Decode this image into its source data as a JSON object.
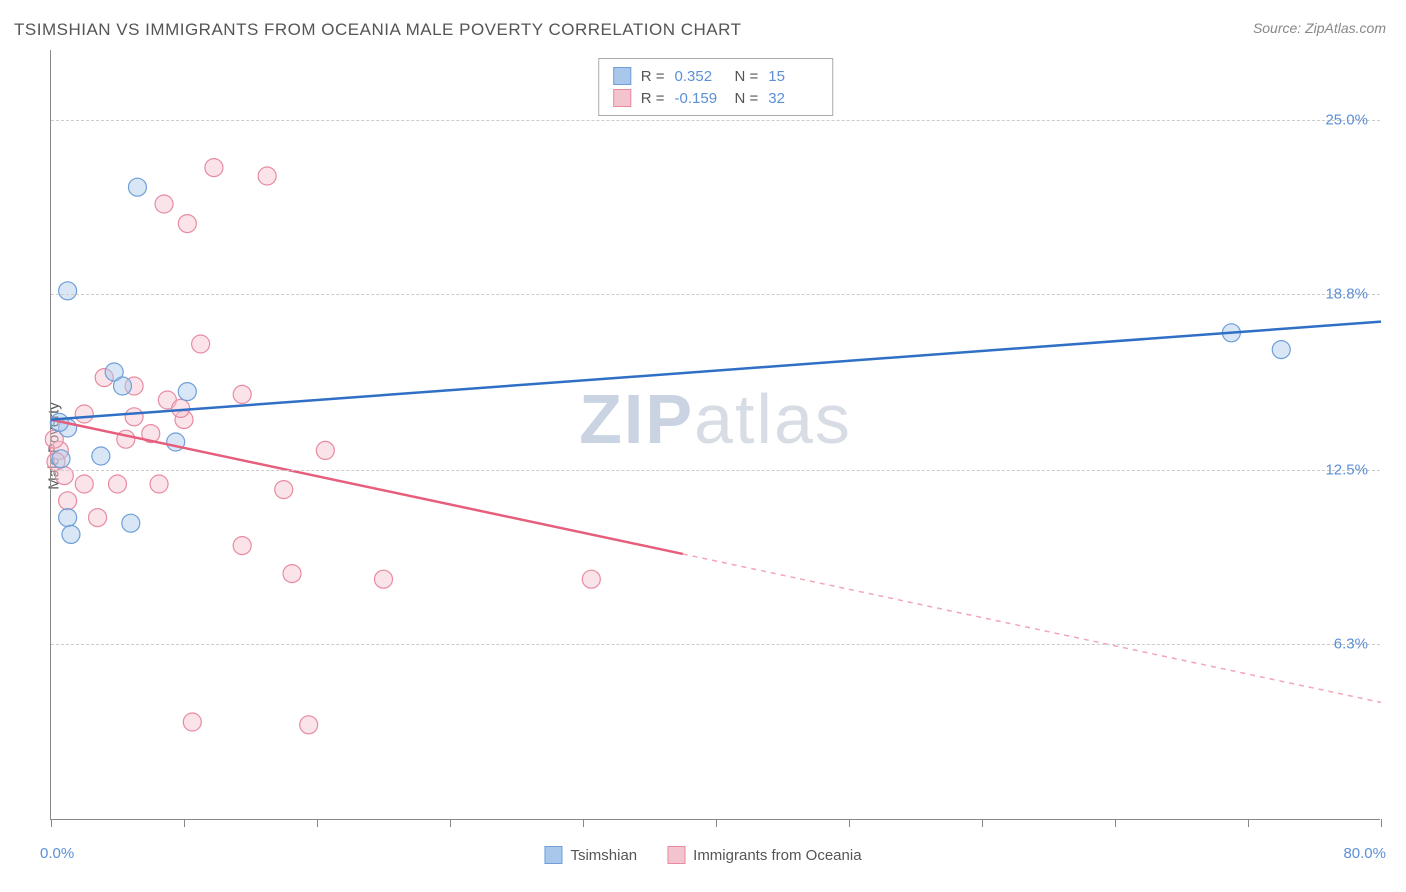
{
  "title": "TSIMSHIAN VS IMMIGRANTS FROM OCEANIA MALE POVERTY CORRELATION CHART",
  "source": "Source: ZipAtlas.com",
  "y_axis_label": "Male Poverty",
  "watermark_pre": "ZIP",
  "watermark_post": "atlas",
  "chart": {
    "type": "scatter",
    "background_color": "#ffffff",
    "grid_color": "#cccccc",
    "axis_color": "#888888",
    "tick_label_color": "#5b8fd6",
    "title_color": "#555555",
    "title_fontsize": 17,
    "label_fontsize": 15,
    "xlim": [
      0,
      80
    ],
    "ylim": [
      0,
      27.5
    ],
    "x_min_label": "0.0%",
    "x_max_label": "80.0%",
    "y_ticks": [
      {
        "value": 6.3,
        "label": "6.3%"
      },
      {
        "value": 12.5,
        "label": "12.5%"
      },
      {
        "value": 18.8,
        "label": "18.8%"
      },
      {
        "value": 25.0,
        "label": "25.0%"
      }
    ],
    "x_tick_positions": [
      0,
      8,
      16,
      24,
      32,
      40,
      48,
      56,
      64,
      72,
      80
    ],
    "marker_radius": 9,
    "marker_opacity": 0.45,
    "line_width": 2.5
  },
  "series_a": {
    "name": "Tsimshian",
    "color_fill": "#a9c7ea",
    "color_stroke": "#6f9fd8",
    "line_color": "#2f6fc5",
    "R": "0.352",
    "N": "15",
    "points": [
      {
        "x": 1.0,
        "y": 18.9
      },
      {
        "x": 5.2,
        "y": 22.6
      },
      {
        "x": 3.8,
        "y": 16.0
      },
      {
        "x": 4.3,
        "y": 15.5
      },
      {
        "x": 8.2,
        "y": 15.3
      },
      {
        "x": 3.0,
        "y": 13.0
      },
      {
        "x": 7.5,
        "y": 13.5
      },
      {
        "x": 1.0,
        "y": 14.0
      },
      {
        "x": 1.0,
        "y": 10.8
      },
      {
        "x": 4.8,
        "y": 10.6
      },
      {
        "x": 1.2,
        "y": 10.2
      },
      {
        "x": 0.6,
        "y": 12.9
      },
      {
        "x": 71.0,
        "y": 17.4
      },
      {
        "x": 74.0,
        "y": 16.8
      },
      {
        "x": 0.5,
        "y": 14.2
      }
    ],
    "trend": {
      "x1": 0,
      "y1": 14.3,
      "x2": 80,
      "y2": 17.8,
      "solid_until_x": 80
    }
  },
  "series_b": {
    "name": "Immigrants from Oceania",
    "color_fill": "#f3c4ce",
    "color_stroke": "#e88ba1",
    "line_color": "#e75d7c",
    "R": "-0.159",
    "N": "32",
    "points": [
      {
        "x": 9.8,
        "y": 23.3
      },
      {
        "x": 13.0,
        "y": 23.0
      },
      {
        "x": 6.8,
        "y": 22.0
      },
      {
        "x": 8.2,
        "y": 21.3
      },
      {
        "x": 9.0,
        "y": 17.0
      },
      {
        "x": 3.2,
        "y": 15.8
      },
      {
        "x": 5.0,
        "y": 15.5
      },
      {
        "x": 7.0,
        "y": 15.0
      },
      {
        "x": 11.5,
        "y": 15.2
      },
      {
        "x": 2.0,
        "y": 14.5
      },
      {
        "x": 5.0,
        "y": 14.4
      },
      {
        "x": 8.0,
        "y": 14.3
      },
      {
        "x": 7.8,
        "y": 14.7
      },
      {
        "x": 16.5,
        "y": 13.2
      },
      {
        "x": 4.5,
        "y": 13.6
      },
      {
        "x": 6.0,
        "y": 13.8
      },
      {
        "x": 0.5,
        "y": 13.2
      },
      {
        "x": 0.3,
        "y": 12.8
      },
      {
        "x": 0.8,
        "y": 12.3
      },
      {
        "x": 2.0,
        "y": 12.0
      },
      {
        "x": 4.0,
        "y": 12.0
      },
      {
        "x": 6.5,
        "y": 12.0
      },
      {
        "x": 1.0,
        "y": 11.4
      },
      {
        "x": 2.8,
        "y": 10.8
      },
      {
        "x": 14.0,
        "y": 11.8
      },
      {
        "x": 11.5,
        "y": 9.8
      },
      {
        "x": 14.5,
        "y": 8.8
      },
      {
        "x": 20.0,
        "y": 8.6
      },
      {
        "x": 32.5,
        "y": 8.6
      },
      {
        "x": 8.5,
        "y": 3.5
      },
      {
        "x": 15.5,
        "y": 3.4
      },
      {
        "x": 0.2,
        "y": 13.6
      }
    ],
    "trend": {
      "x1": 0,
      "y1": 14.3,
      "x2": 80,
      "y2": 4.2,
      "solid_until_x": 38
    }
  },
  "legend": {
    "r_label": "R  =",
    "n_label": "N  ="
  }
}
